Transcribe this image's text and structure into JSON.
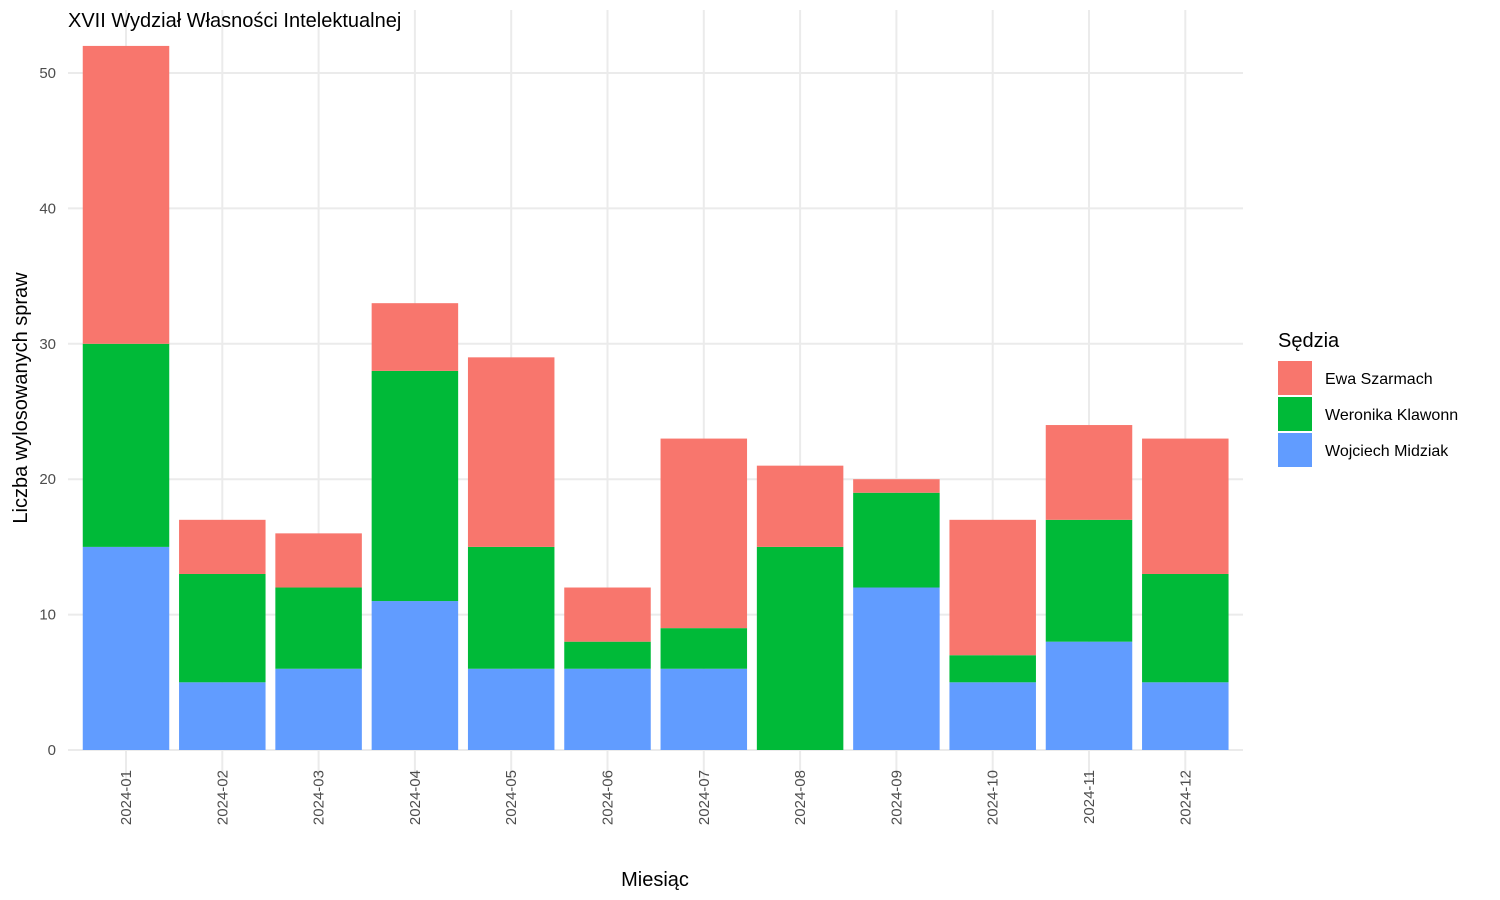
{
  "chart_data": {
    "type": "bar",
    "stacked": true,
    "title": "XVII Wydział Własności Intelektualnej",
    "xlabel": "Miesiąc",
    "ylabel": "Liczba wylosowanych spraw",
    "ylim": [
      0,
      52
    ],
    "yticks": [
      0,
      10,
      20,
      30,
      40,
      50
    ],
    "grid": true,
    "legend_position": "right",
    "legend_title": "Sędzia",
    "categories": [
      "2024-01",
      "2024-02",
      "2024-03",
      "2024-04",
      "2024-05",
      "2024-06",
      "2024-07",
      "2024-08",
      "2024-09",
      "2024-10",
      "2024-11",
      "2024-12"
    ],
    "series": [
      {
        "name": "Wojciech Midziak",
        "color": "#619CFF",
        "values": [
          15,
          5,
          6,
          11,
          6,
          6,
          6,
          0,
          12,
          5,
          8,
          5
        ]
      },
      {
        "name": "Weronika Klawonn",
        "color": "#00BA38",
        "values": [
          15,
          8,
          6,
          17,
          9,
          2,
          3,
          15,
          7,
          2,
          9,
          8
        ]
      },
      {
        "name": "Ewa Szarmach",
        "color": "#F8766D",
        "values": [
          22,
          4,
          4,
          5,
          14,
          4,
          14,
          6,
          1,
          10,
          7,
          10
        ]
      }
    ],
    "legend_order": [
      "Ewa Szarmach",
      "Weronika Klawonn",
      "Wojciech Midziak"
    ]
  }
}
